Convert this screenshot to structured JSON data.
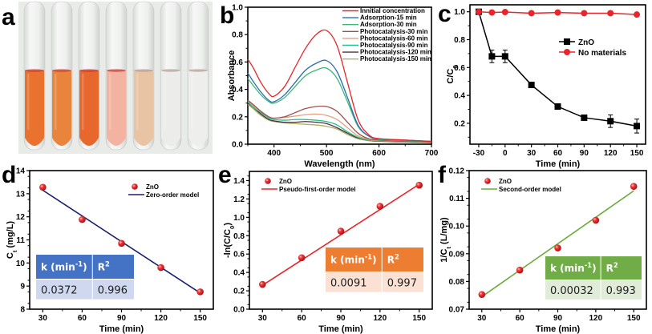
{
  "panel_labels": [
    "a",
    "b",
    "c",
    "d",
    "e",
    "f"
  ],
  "photo": {
    "description": "Seven test tubes showing dye decolorization",
    "tube_colors": [
      "#e8722e",
      "#e9843c",
      "#e8672c",
      "#f3b3a0",
      "#e9c4a4",
      "#ececea",
      "#eeeeec"
    ]
  },
  "colors": {
    "red": "#e8252a",
    "black": "#000000",
    "navy": "#1a1f6e",
    "green_line": "#6aab3a",
    "table_d_head": "#4472c4",
    "table_d_body": "#cfd8ee",
    "table_e_head": "#ed7d31",
    "table_e_body": "#fbe1d4",
    "table_f_head": "#70ad47",
    "table_f_body": "#e0ebd8"
  },
  "chart_data": [
    {
      "id": "b",
      "type": "line",
      "title": "",
      "xlabel": "Wavelength (nm)",
      "ylabel": "Absorbance",
      "xlim": [
        350,
        700
      ],
      "ylim": [
        0.0,
        1.0
      ],
      "xticks": [
        "400",
        "500",
        "600",
        "700"
      ],
      "yticks": [
        "0.0",
        "0.2",
        "0.4",
        "0.6",
        "0.8",
        "1.0"
      ],
      "legend_position": "top-right",
      "x": [
        350,
        360,
        375,
        390,
        400,
        420,
        440,
        460,
        480,
        500,
        520,
        540,
        560,
        580,
        600,
        650,
        700
      ],
      "series": [
        {
          "name": "Innitial concentration",
          "color": "#e8252a",
          "values": [
            0.62,
            0.56,
            0.45,
            0.37,
            0.35,
            0.42,
            0.56,
            0.7,
            0.8,
            0.83,
            0.72,
            0.45,
            0.18,
            0.07,
            0.04,
            0.03,
            0.02
          ]
        },
        {
          "name": "Adsorption-15 min",
          "color": "#2a6cb0",
          "values": [
            0.52,
            0.46,
            0.38,
            0.32,
            0.31,
            0.36,
            0.45,
            0.54,
            0.59,
            0.61,
            0.53,
            0.34,
            0.14,
            0.06,
            0.04,
            0.03,
            0.02
          ]
        },
        {
          "name": "Adsorption-30 min",
          "color": "#3cb878",
          "values": [
            0.48,
            0.43,
            0.36,
            0.31,
            0.3,
            0.34,
            0.42,
            0.5,
            0.54,
            0.555,
            0.48,
            0.31,
            0.13,
            0.06,
            0.035,
            0.025,
            0.02
          ]
        },
        {
          "name": "Photocatalysis-30 min",
          "color": "#a0504a",
          "values": [
            0.32,
            0.29,
            0.24,
            0.2,
            0.19,
            0.2,
            0.23,
            0.26,
            0.275,
            0.275,
            0.24,
            0.16,
            0.08,
            0.04,
            0.03,
            0.02,
            0.015
          ]
        },
        {
          "name": "Photocatalysis-60 min",
          "color": "#e0a080",
          "values": [
            0.32,
            0.28,
            0.24,
            0.2,
            0.19,
            0.195,
            0.205,
            0.215,
            0.22,
            0.21,
            0.18,
            0.12,
            0.06,
            0.035,
            0.025,
            0.02,
            0.015
          ]
        },
        {
          "name": "Photocatalysis-90 min",
          "color": "#20c090",
          "values": [
            0.31,
            0.27,
            0.23,
            0.19,
            0.18,
            0.175,
            0.18,
            0.18,
            0.175,
            0.165,
            0.14,
            0.09,
            0.05,
            0.03,
            0.025,
            0.02,
            0.015
          ]
        },
        {
          "name": "Photocatalysis-120 min",
          "color": "#503040",
          "values": [
            0.3,
            0.27,
            0.22,
            0.18,
            0.17,
            0.16,
            0.16,
            0.165,
            0.16,
            0.15,
            0.12,
            0.08,
            0.045,
            0.03,
            0.022,
            0.018,
            0.014
          ]
        },
        {
          "name": "Photocatalysis-150 min",
          "color": "#b0b060",
          "values": [
            0.29,
            0.26,
            0.21,
            0.175,
            0.165,
            0.155,
            0.15,
            0.145,
            0.14,
            0.13,
            0.11,
            0.07,
            0.04,
            0.025,
            0.02,
            0.015,
            0.012
          ]
        }
      ]
    },
    {
      "id": "c",
      "type": "line",
      "title": "",
      "xlabel": "Time (min)",
      "ylabel": "C/C0",
      "xlim": [
        -40,
        160
      ],
      "ylim": [
        0.05,
        1.05
      ],
      "xticks": [
        "-30",
        "0",
        "30",
        "60",
        "90",
        "120",
        "150"
      ],
      "yticks": [
        "0.2",
        "0.4",
        "0.6",
        "0.8",
        "1.0"
      ],
      "legend_position": "center-right",
      "x": [
        -30,
        -15,
        0,
        30,
        60,
        90,
        120,
        150
      ],
      "series": [
        {
          "name": "ZnO",
          "color": "#000000",
          "marker": "square",
          "values": [
            1.0,
            0.68,
            0.68,
            0.475,
            0.32,
            0.24,
            0.215,
            0.18
          ],
          "errors": [
            0.0,
            0.045,
            0.045,
            0.01,
            0.02,
            0.01,
            0.045,
            0.05
          ]
        },
        {
          "name": "No materials",
          "color": "#e8252a",
          "marker": "circle",
          "values": [
            1.0,
            0.995,
            0.998,
            0.99,
            0.995,
            0.99,
            0.99,
            0.98
          ]
        }
      ]
    },
    {
      "id": "d",
      "type": "scatter",
      "title": "",
      "xlabel": "Time (min)",
      "ylabel": "Ct (mg/L)",
      "xlim": [
        20,
        160
      ],
      "ylim": [
        8,
        14
      ],
      "xticks": [
        "30",
        "60",
        "90",
        "120",
        "150"
      ],
      "yticks": [
        "8",
        "9",
        "10",
        "11",
        "12",
        "13",
        "14"
      ],
      "legend_position": "top-right",
      "x": [
        30,
        60,
        90,
        120,
        150
      ],
      "series": [
        {
          "name": "ZnO",
          "color": "#e8252a",
          "marker": "sphere",
          "values": [
            13.28,
            11.88,
            10.85,
            9.8,
            8.75
          ]
        },
        {
          "name": "Zero-order model",
          "color": "#1a1f6e",
          "type": "fit",
          "line": [
            [
              30,
              13.15
            ],
            [
              150,
              8.7
            ]
          ]
        }
      ],
      "table": {
        "headers": [
          "k (min-1)",
          "R2"
        ],
        "values": [
          "0.0372",
          "0.996"
        ]
      }
    },
    {
      "id": "e",
      "type": "scatter",
      "title": "",
      "xlabel": "Time (min)",
      "ylabel": "-ln(C/C0)",
      "xlim": [
        20,
        160
      ],
      "ylim": [
        0.0,
        1.5
      ],
      "xticks": [
        "30",
        "60",
        "90",
        "120",
        "150"
      ],
      "yticks": [
        "0.0",
        "0.2",
        "0.4",
        "0.6",
        "0.8",
        "1.0",
        "1.2",
        "1.4"
      ],
      "legend_position": "top-left",
      "x": [
        30,
        60,
        90,
        120,
        150
      ],
      "series": [
        {
          "name": "ZnO",
          "color": "#e8252a",
          "marker": "sphere",
          "values": [
            0.27,
            0.56,
            0.85,
            1.12,
            1.35
          ]
        },
        {
          "name": "Pseudo-first-order model",
          "color": "#e8252a",
          "type": "fit",
          "line": [
            [
              30,
              0.26
            ],
            [
              150,
              1.36
            ]
          ]
        }
      ],
      "table": {
        "headers": [
          "k (min-1)",
          "R2"
        ],
        "values": [
          "0.0091",
          "0.997"
        ]
      }
    },
    {
      "id": "f",
      "type": "scatter",
      "title": "",
      "xlabel": "Time (min)",
      "ylabel": "1/Ct (L/mg)",
      "xlim": [
        20,
        160
      ],
      "ylim": [
        0.07,
        0.12
      ],
      "xticks": [
        "30",
        "60",
        "90",
        "120",
        "150"
      ],
      "yticks": [
        "0.07",
        "0.08",
        "0.09",
        "0.10",
        "0.11",
        "0.12"
      ],
      "legend_position": "top-left",
      "x": [
        30,
        60,
        90,
        120,
        150
      ],
      "series": [
        {
          "name": "ZnO",
          "color": "#e8252a",
          "marker": "sphere",
          "values": [
            0.0753,
            0.0841,
            0.0921,
            0.1021,
            0.1143
          ]
        },
        {
          "name": "Second-order model",
          "color": "#6aab3a",
          "type": "fit",
          "line": [
            [
              30,
              0.0745
            ],
            [
              150,
              0.1127
            ]
          ]
        }
      ],
      "table": {
        "headers": [
          "k (min-1)",
          "R2"
        ],
        "values": [
          "0.00032",
          "0.993"
        ]
      }
    }
  ]
}
